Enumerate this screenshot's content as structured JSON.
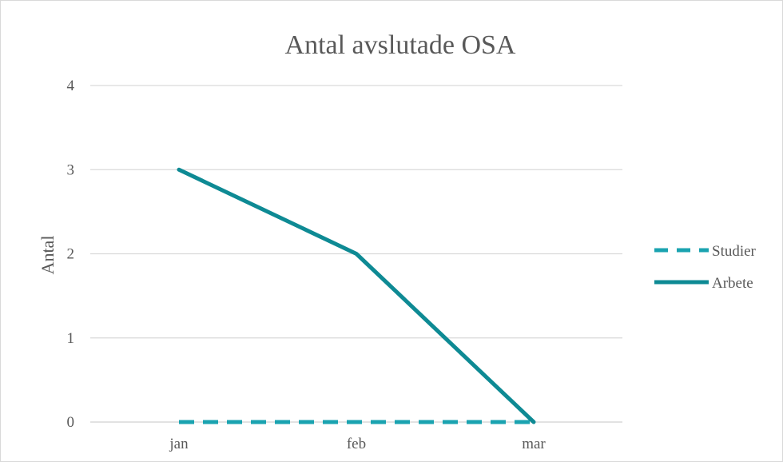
{
  "chart_data": {
    "type": "line",
    "title": "Antal avslutade OSA",
    "xlabel": "",
    "ylabel": "Antal",
    "categories": [
      "jan",
      "feb",
      "mar"
    ],
    "ylim": [
      0,
      4
    ],
    "yticks": [
      0,
      1,
      2,
      3,
      4
    ],
    "grid": true,
    "legend_position": "right",
    "series": [
      {
        "name": "Studier",
        "values": [
          0,
          0,
          0
        ],
        "color": "#1aa3b0",
        "line_style": "dashed"
      },
      {
        "name": "Arbete",
        "values": [
          3,
          2,
          0
        ],
        "color": "#0e8a94",
        "line_style": "solid"
      }
    ]
  }
}
